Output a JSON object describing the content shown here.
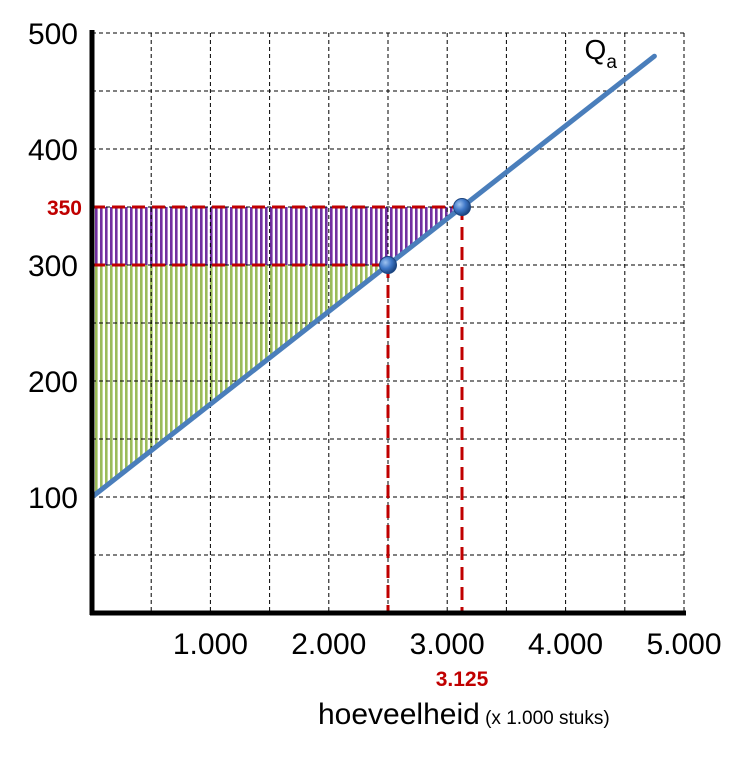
{
  "chart_data": {
    "type": "line",
    "xlabel": "hoeveelheid",
    "xlabel_unit": "(x 1.000 stuks)",
    "x_ticks": [
      {
        "value": 1000,
        "label": "1.000"
      },
      {
        "value": 2000,
        "label": "2.000"
      },
      {
        "value": 3000,
        "label": "3.000"
      },
      {
        "value": 4000,
        "label": "4.000"
      },
      {
        "value": 5000,
        "label": "5.000"
      }
    ],
    "y_ticks": [
      {
        "value": 100,
        "label": "100"
      },
      {
        "value": 200,
        "label": "200"
      },
      {
        "value": 300,
        "label": "300"
      },
      {
        "value": 400,
        "label": "400"
      },
      {
        "value": 500,
        "label": "500"
      }
    ],
    "xlim": [
      0,
      5000
    ],
    "ylim": [
      0,
      500
    ],
    "grid": true,
    "grid_x_step": 500,
    "grid_y_step": 50,
    "series": [
      {
        "name": "Q",
        "name_subscript": "a",
        "color": "#4a7ebb",
        "x": [
          0,
          4750
        ],
        "y": [
          100,
          480
        ]
      }
    ],
    "points": [
      {
        "x": 2500,
        "y": 300
      },
      {
        "x": 3125,
        "y": 350
      }
    ],
    "highlight_labels": {
      "y": {
        "value": 350,
        "label": "350"
      },
      "x": {
        "value": 3125,
        "label": "3.125"
      }
    },
    "shaded_regions": [
      {
        "kind": "triangle",
        "color": "#9bbb59",
        "y_from": 100,
        "y_to": 300,
        "x_to": 2500
      },
      {
        "kind": "band",
        "color": "#7030a0",
        "y_from": 300,
        "y_to": 350,
        "x_to": 3125
      }
    ],
    "colors": {
      "axis": "#000000",
      "grid": "#000000",
      "line": "#4a7ebb",
      "highlight": "#c00000",
      "green": "#9bbb59",
      "purple": "#7030a0"
    }
  }
}
